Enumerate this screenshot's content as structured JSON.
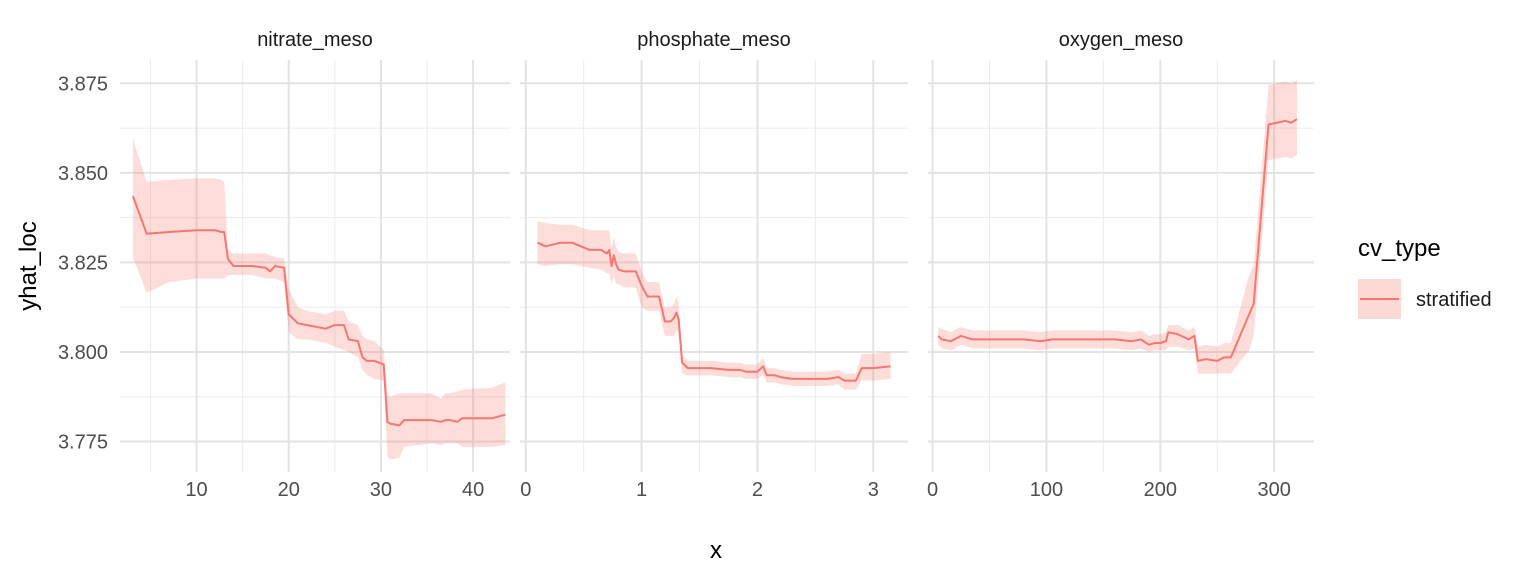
{
  "chart_data": {
    "type": "line",
    "ylabel": "yhat_loc",
    "xlabel": "x",
    "ylim": [
      3.7665,
      3.8815
    ],
    "y_ticks": [
      3.775,
      3.8,
      3.825,
      3.85,
      3.875
    ],
    "y_tick_labels": [
      "3.775",
      "3.800",
      "3.825",
      "3.850",
      "3.875"
    ],
    "grid": true,
    "legend": {
      "title": "cv_type",
      "position": "right",
      "entries": [
        {
          "label": "stratified",
          "line_color": "#F8766D",
          "fill_color": "#FCD9D5"
        }
      ]
    },
    "series_color": "#F8766D",
    "ribbon_color": "#F8766D",
    "panels": [
      {
        "title": "nitrate_meso",
        "xlim": [
          1.7,
          44.0
        ],
        "x_ticks": [
          10,
          20,
          30,
          40
        ],
        "x_tick_labels": [
          "10",
          "20",
          "30",
          "40"
        ],
        "series": [
          {
            "name": "stratified",
            "x": [
              3.1,
              4.6,
              7.0,
              10.0,
              12.0,
              12.7,
              13.0,
              13.4,
              14.0,
              16.0,
              17.5,
              18.0,
              18.5,
              19.5,
              20.0,
              21.0,
              22.0,
              24.0,
              25.0,
              26.0,
              26.5,
              27.5,
              28.0,
              28.5,
              29.3,
              30.3,
              30.7,
              31.0,
              32.0,
              32.5,
              35.5,
              36.5,
              37.0,
              37.5,
              38.3,
              38.8,
              42.0,
              43.5
            ],
            "y": [
              3.8435,
              3.833,
              3.8335,
              3.834,
              3.834,
              3.8335,
              3.8335,
              3.826,
              3.824,
              3.824,
              3.8235,
              3.8225,
              3.824,
              3.8235,
              3.8105,
              3.808,
              3.8075,
              3.8065,
              3.8075,
              3.8075,
              3.8035,
              3.803,
              3.7985,
              3.7975,
              3.7975,
              3.7965,
              3.7805,
              3.78,
              3.7795,
              3.781,
              3.781,
              3.7805,
              3.781,
              3.781,
              3.7805,
              3.7815,
              3.7815,
              3.7825
            ],
            "lower": [
              3.8265,
              3.8165,
              3.8195,
              3.8205,
              3.8205,
              3.8205,
              3.8205,
              3.8215,
              3.8215,
              3.8215,
              3.8205,
              3.8205,
              3.8205,
              3.8195,
              3.8055,
              3.8035,
              3.8035,
              3.8025,
              3.8015,
              3.8005,
              3.8,
              3.7985,
              3.795,
              3.7935,
              3.7925,
              3.792,
              3.771,
              3.77,
              3.7705,
              3.7735,
              3.7745,
              3.774,
              3.7745,
              3.7745,
              3.7745,
              3.7735,
              3.7735,
              3.774
            ],
            "upper": [
              3.8595,
              3.8475,
              3.848,
              3.8485,
              3.8485,
              3.848,
              3.8475,
              3.8285,
              3.8275,
              3.8275,
              3.8275,
              3.827,
              3.8265,
              3.826,
              3.8175,
              3.8125,
              3.8115,
              3.8105,
              3.8115,
              3.8115,
              3.8085,
              3.8075,
              3.8045,
              3.8035,
              3.803,
              3.8005,
              3.788,
              3.7875,
              3.7885,
              3.7885,
              3.7885,
              3.787,
              3.7885,
              3.7885,
              3.789,
              3.7895,
              3.79,
              3.7915
            ]
          }
        ]
      },
      {
        "title": "phosphate_meso",
        "xlim": [
          -0.05,
          3.3
        ],
        "x_ticks": [
          0,
          1,
          2,
          3
        ],
        "x_tick_labels": [
          "0",
          "1",
          "2",
          "3"
        ],
        "series": [
          {
            "name": "stratified",
            "x": [
              0.1,
              0.17,
              0.3,
              0.4,
              0.55,
              0.65,
              0.7,
              0.72,
              0.74,
              0.76,
              0.78,
              0.8,
              0.85,
              0.95,
              1.0,
              1.05,
              1.15,
              1.2,
              1.25,
              1.28,
              1.3,
              1.32,
              1.35,
              1.4,
              1.5,
              1.6,
              1.75,
              1.85,
              1.9,
              2.0,
              2.05,
              2.08,
              2.15,
              2.2,
              2.3,
              2.4,
              2.6,
              2.7,
              2.75,
              2.85,
              2.9,
              3.0,
              3.15
            ],
            "y": [
              3.8305,
              3.8295,
              3.8305,
              3.8305,
              3.8285,
              3.8285,
              3.8275,
              3.8285,
              3.824,
              3.827,
              3.8245,
              3.823,
              3.8225,
              3.8225,
              3.8185,
              3.8155,
              3.8155,
              3.8085,
              3.8085,
              3.8095,
              3.811,
              3.809,
              3.797,
              3.7955,
              3.7955,
              3.7955,
              3.795,
              3.795,
              3.7945,
              3.7945,
              3.796,
              3.7935,
              3.7935,
              3.793,
              3.7925,
              3.7925,
              3.7925,
              3.793,
              3.792,
              3.792,
              3.7955,
              3.7955,
              3.796
            ],
            "lower": [
              3.8245,
              3.824,
              3.8245,
              3.8245,
              3.8235,
              3.823,
              3.822,
              3.822,
              3.819,
              3.821,
              3.819,
              3.819,
              3.818,
              3.818,
              3.8125,
              3.8115,
              3.8115,
              3.8045,
              3.8045,
              3.8045,
              3.806,
              3.805,
              3.794,
              3.7935,
              3.7935,
              3.7935,
              3.793,
              3.793,
              3.7925,
              3.7925,
              3.7935,
              3.7915,
              3.7915,
              3.791,
              3.7905,
              3.7905,
              3.7905,
              3.791,
              3.7895,
              3.7895,
              3.792,
              3.792,
              3.7925
            ],
            "upper": [
              3.8365,
              3.836,
              3.8355,
              3.8355,
              3.834,
              3.834,
              3.834,
              3.834,
              3.829,
              3.832,
              3.8295,
              3.828,
              3.8275,
              3.8275,
              3.8225,
              3.8195,
              3.8195,
              3.8125,
              3.8125,
              3.8135,
              3.8155,
              3.8135,
              3.7995,
              3.7975,
              3.7975,
              3.7975,
              3.797,
              3.797,
              3.7965,
              3.7965,
              3.7985,
              3.7955,
              3.7955,
              3.795,
              3.7945,
              3.7945,
              3.7945,
              3.795,
              3.794,
              3.794,
              3.7995,
              3.7995,
              3.8
            ]
          }
        ]
      },
      {
        "title": "oxygen_meso",
        "xlim": [
          -4,
          335
        ],
        "x_ticks": [
          0,
          100,
          200,
          300
        ],
        "x_tick_labels": [
          "0",
          "100",
          "200",
          "300"
        ],
        "series": [
          {
            "name": "stratified",
            "x": [
              5,
              8,
              16,
              25,
              35,
              50,
              60,
              80,
              95,
              105,
              120,
              150,
              155,
              160,
              175,
              183,
              190,
              195,
              200,
              205,
              207,
              215,
              225,
              230,
              233,
              240,
              250,
              256,
              262,
              278,
              282,
              295,
              310,
              315,
              320
            ],
            "y": [
              3.8045,
              3.8035,
              3.803,
              3.8045,
              3.8035,
              3.8035,
              3.8035,
              3.8035,
              3.803,
              3.8035,
              3.8035,
              3.8035,
              3.8035,
              3.8035,
              3.803,
              3.8035,
              3.802,
              3.8025,
              3.8025,
              3.803,
              3.8055,
              3.805,
              3.8035,
              3.8045,
              3.7975,
              3.798,
              3.7975,
              3.7985,
              3.7985,
              3.8105,
              3.8135,
              3.8635,
              3.8645,
              3.864,
              3.865
            ],
            "lower": [
              3.802,
              3.801,
              3.8005,
              3.802,
              3.801,
              3.801,
              3.801,
              3.801,
              3.8005,
              3.801,
              3.801,
              3.801,
              3.801,
              3.801,
              3.8005,
              3.801,
              3.8,
              3.8005,
              3.8005,
              3.8005,
              3.8015,
              3.8015,
              3.8005,
              3.801,
              3.794,
              3.794,
              3.794,
              3.794,
              3.794,
              3.8005,
              3.8045,
              3.8535,
              3.8545,
              3.854,
              3.855
            ],
            "upper": [
              3.807,
              3.8065,
              3.8055,
              3.807,
              3.806,
              3.806,
              3.806,
              3.806,
              3.8055,
              3.806,
              3.806,
              3.806,
              3.806,
              3.806,
              3.8055,
              3.806,
              3.8045,
              3.805,
              3.805,
              3.8055,
              3.8075,
              3.8075,
              3.806,
              3.807,
              3.8015,
              3.802,
              3.8015,
              3.8025,
              3.8025,
              3.8215,
              3.824,
              3.8745,
              3.8755,
              3.875,
              3.876
            ]
          }
        ]
      }
    ]
  }
}
